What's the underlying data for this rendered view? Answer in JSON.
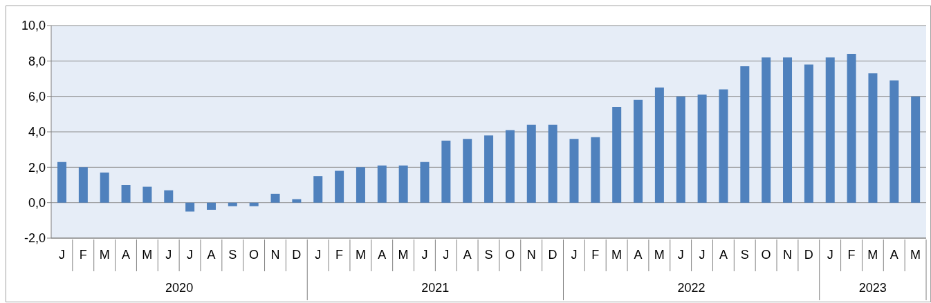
{
  "chart_data": {
    "type": "bar",
    "categories": [
      "J",
      "F",
      "M",
      "A",
      "M",
      "J",
      "J",
      "A",
      "S",
      "O",
      "N",
      "D",
      "J",
      "F",
      "M",
      "A",
      "M",
      "J",
      "J",
      "A",
      "S",
      "O",
      "N",
      "D",
      "J",
      "F",
      "M",
      "A",
      "M",
      "J",
      "J",
      "A",
      "S",
      "O",
      "N",
      "D",
      "J",
      "F",
      "M",
      "A",
      "M"
    ],
    "values": [
      2.3,
      2.0,
      1.7,
      1.0,
      0.9,
      0.7,
      -0.5,
      -0.4,
      -0.2,
      -0.2,
      0.5,
      0.2,
      1.5,
      1.8,
      2.0,
      2.1,
      2.1,
      2.3,
      3.5,
      3.6,
      3.8,
      4.1,
      4.4,
      4.4,
      3.6,
      3.7,
      5.4,
      5.8,
      6.5,
      6.0,
      6.1,
      6.4,
      7.7,
      8.2,
      8.2,
      7.8,
      8.2,
      8.4,
      7.3,
      6.9,
      6.0
    ],
    "color": "#4f81bd",
    "ylim": [
      -2,
      10
    ],
    "yticks": [
      {
        "value": -2,
        "label": "-2,0"
      },
      {
        "value": 0,
        "label": "0,0"
      },
      {
        "value": 2,
        "label": "2,0"
      },
      {
        "value": 4,
        "label": "4,0"
      },
      {
        "value": 6,
        "label": "6,0"
      },
      {
        "value": 8,
        "label": "8,0"
      },
      {
        "value": 10,
        "label": "10,0"
      }
    ],
    "grid": "y",
    "annotations": [
      "2020",
      "2021",
      "2022",
      "2023"
    ]
  }
}
